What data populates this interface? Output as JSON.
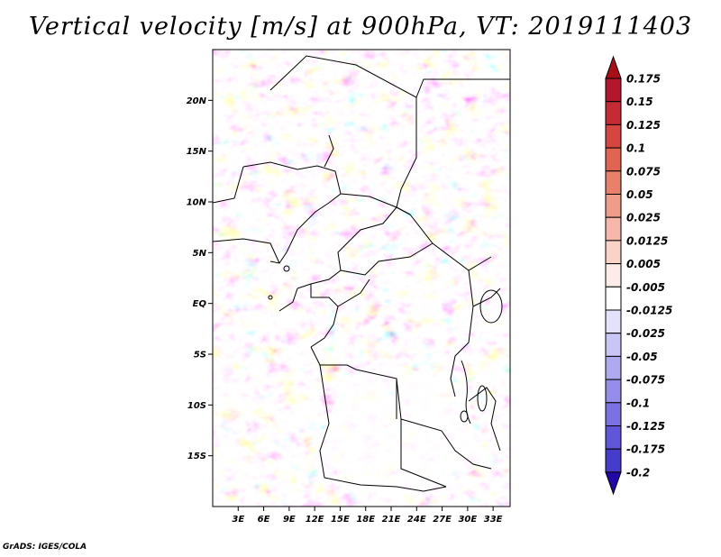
{
  "title": "Vertical velocity [m/s] at 900hPa, VT: 2019111403",
  "credit": "GrADS: IGES/COLA",
  "map": {
    "lon_range": [
      0,
      35
    ],
    "lat_range": [
      -20,
      25
    ],
    "lat_ticks": [
      {
        "value": 20,
        "label": "20N"
      },
      {
        "value": 15,
        "label": "15N"
      },
      {
        "value": 10,
        "label": "10N"
      },
      {
        "value": 5,
        "label": "5N"
      },
      {
        "value": 0,
        "label": "EQ"
      },
      {
        "value": -5,
        "label": "5S"
      },
      {
        "value": -10,
        "label": "10S"
      },
      {
        "value": -15,
        "label": "15S"
      }
    ],
    "lon_ticks": [
      {
        "value": 3,
        "label": "3E"
      },
      {
        "value": 6,
        "label": "6E"
      },
      {
        "value": 9,
        "label": "9E"
      },
      {
        "value": 12,
        "label": "12E"
      },
      {
        "value": 15,
        "label": "15E"
      },
      {
        "value": 18,
        "label": "18E"
      },
      {
        "value": 21,
        "label": "21E"
      },
      {
        "value": 24,
        "label": "24E"
      },
      {
        "value": 27,
        "label": "27E"
      },
      {
        "value": 30,
        "label": "30E"
      },
      {
        "value": 33,
        "label": "33E"
      }
    ]
  },
  "colorbar": {
    "levels": [
      {
        "label": "0.175",
        "color": "#b2182b"
      },
      {
        "label": "0.15",
        "color": "#c32c33"
      },
      {
        "label": "0.125",
        "color": "#d4463f"
      },
      {
        "label": "0.1",
        "color": "#e06452"
      },
      {
        "label": "0.075",
        "color": "#e8806a"
      },
      {
        "label": "0.05",
        "color": "#ef9c8a"
      },
      {
        "label": "0.025",
        "color": "#f5b8aa"
      },
      {
        "label": "0.0125",
        "color": "#f9d2c8"
      },
      {
        "label": "0.005",
        "color": "#fcebe6"
      },
      {
        "label": "-0.005",
        "color": "#ffffff"
      },
      {
        "label": "-0.0125",
        "color": "#e3e2fa"
      },
      {
        "label": "-0.025",
        "color": "#c8c6f5"
      },
      {
        "label": "-0.05",
        "color": "#aeaaf0"
      },
      {
        "label": "-0.075",
        "color": "#948eea"
      },
      {
        "label": "-0.1",
        "color": "#7a72e2"
      },
      {
        "label": "-0.125",
        "color": "#6056d8"
      },
      {
        "label": "-0.175",
        "color": "#463cca"
      },
      {
        "label": "-0.2",
        "color": "#2d22b8"
      }
    ],
    "over_color": "#a50f15",
    "under_color": "#2308a8"
  }
}
